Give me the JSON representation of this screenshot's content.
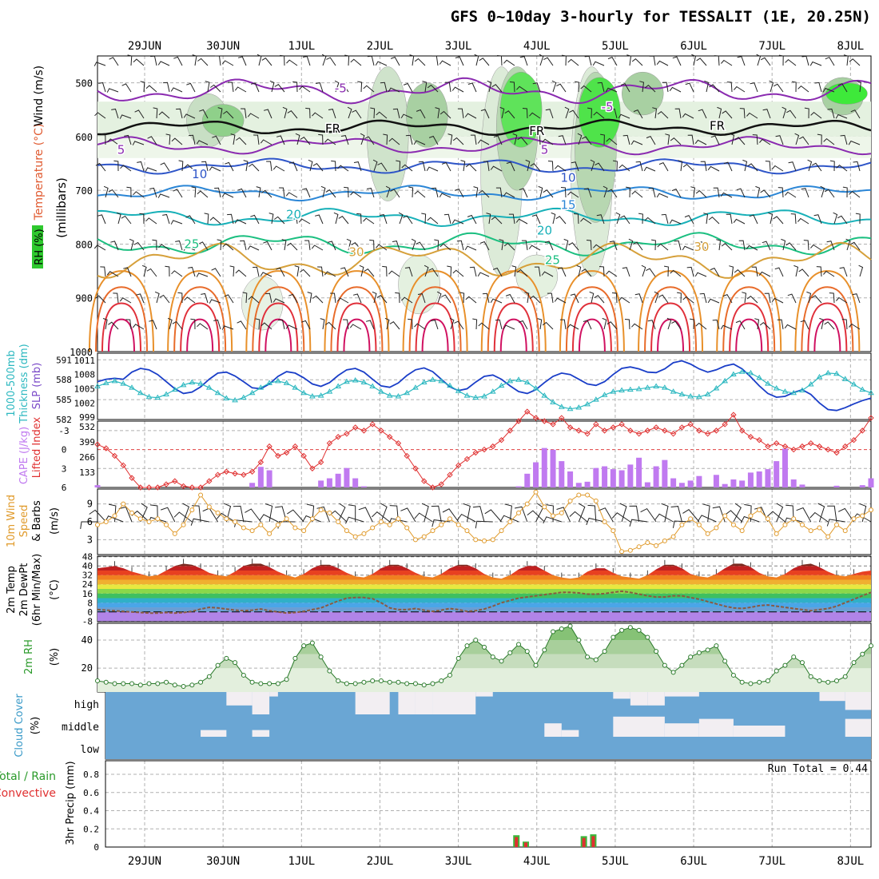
{
  "title": "GFS 0~10day 3-hourly for TESSALIT (1E, 20.25N)",
  "chart_data": {
    "type": "meteogram",
    "dates": [
      "29JUN",
      "30JUN",
      "1JUL",
      "2JUL",
      "3JUL",
      "4JUL",
      "5JUL",
      "6JUL",
      "7JUL",
      "8JUL"
    ],
    "panels": [
      {
        "id": "upper",
        "labels": [
          "RH (%)",
          "Temperature (°C)",
          "Wind (m/s)",
          "(millibars)"
        ],
        "yticks": [
          "500",
          "600",
          "700",
          "800",
          "900",
          "1000"
        ],
        "ylim": [
          450,
          1000
        ],
        "contour_labels": [
          {
            "text": "FR",
            "x_day": 3.4,
            "p": 585
          },
          {
            "text": "FR",
            "x_day": 6.0,
            "p": 590
          },
          {
            "text": "FR",
            "x_day": 8.3,
            "p": 580
          },
          {
            "text": "-5",
            "x_day": 3.5,
            "p": 510
          },
          {
            "text": "-5",
            "x_day": 6.9,
            "p": 545
          },
          {
            "text": "5",
            "x_day": 0.7,
            "p": 625
          },
          {
            "text": "5",
            "x_day": 6.1,
            "p": 625
          },
          {
            "text": "10",
            "x_day": 1.7,
            "p": 670
          },
          {
            "text": "10",
            "x_day": 6.4,
            "p": 677
          },
          {
            "text": "15",
            "x_day": 6.4,
            "p": 727
          },
          {
            "text": "20",
            "x_day": 2.9,
            "p": 745
          },
          {
            "text": "20",
            "x_day": 6.1,
            "p": 775
          },
          {
            "text": "25",
            "x_day": 1.6,
            "p": 800
          },
          {
            "text": "25",
            "x_day": 6.2,
            "p": 830
          },
          {
            "text": "30",
            "x_day": 3.7,
            "p": 815
          },
          {
            "text": "30",
            "x_day": 8.1,
            "p": 805
          }
        ]
      },
      {
        "id": "slp",
        "labels": [
          "1000-500mb",
          "Thickness (dm)",
          "SLP (mb)"
        ],
        "left_ticks": [
          "591",
          "588",
          "585",
          "582"
        ],
        "right_ticks": [
          "1011",
          "1008",
          "1005",
          "1002",
          "999"
        ],
        "thickness_dm": [
          587.0,
          587.5,
          587.8,
          587.4,
          586.8,
          586.0,
          585.4,
          585.3,
          585.8,
          586.5,
          587.2,
          587.6,
          587.4,
          586.8,
          586.0,
          585.2,
          584.9,
          585.3,
          586.0,
          586.8,
          587.5,
          587.8,
          587.5,
          586.8,
          586.0,
          585.5,
          585.6,
          586.2,
          587.0,
          587.7,
          587.9,
          587.6,
          587.0,
          586.2,
          585.6,
          585.5,
          586.0,
          586.8,
          587.6,
          588.0,
          587.8,
          587.1,
          586.3,
          585.6,
          585.3,
          585.5,
          586.2,
          587.1,
          587.8,
          588.0,
          587.6,
          586.7,
          585.6,
          584.6,
          583.9,
          583.6,
          583.8,
          584.3,
          585.0,
          585.7,
          586.2,
          586.4,
          586.5,
          586.6,
          586.8,
          587.0,
          586.8,
          586.2,
          585.8,
          585.5,
          585.4,
          585.8,
          586.7,
          587.8,
          588.8,
          589.2,
          589.0,
          588.3,
          587.4,
          586.7,
          586.2,
          586.0,
          586.4,
          587.3,
          588.4,
          589.0,
          588.9,
          588.1,
          587.3,
          586.5,
          586.0
        ],
        "slp_mb": [
          1006.5,
          1007.0,
          1007.2,
          1007.0,
          1008.5,
          1009.3,
          1009.0,
          1008.0,
          1006.5,
          1005.0,
          1004.0,
          1004.3,
          1005.4,
          1007.0,
          1008.3,
          1008.5,
          1007.7,
          1006.5,
          1005.2,
          1005.0,
          1006.0,
          1007.6,
          1008.6,
          1008.3,
          1007.3,
          1006.0,
          1005.5,
          1006.3,
          1007.8,
          1009.0,
          1009.3,
          1008.5,
          1007.0,
          1005.6,
          1005.3,
          1006.2,
          1007.8,
          1009.0,
          1009.4,
          1008.6,
          1007.0,
          1005.4,
          1004.6,
          1005.0,
          1006.4,
          1007.6,
          1007.9,
          1007.0,
          1005.6,
          1004.4,
          1004.0,
          1004.8,
          1006.3,
          1007.6,
          1008.3,
          1008.0,
          1007.0,
          1006.0,
          1005.7,
          1006.5,
          1008.0,
          1009.3,
          1009.6,
          1009.2,
          1008.5,
          1008.4,
          1009.2,
          1010.5,
          1010.9,
          1010.2,
          1009.2,
          1008.5,
          1009.0,
          1009.8,
          1010.2,
          1009.2,
          1007.5,
          1005.6,
          1004.0,
          1003.2,
          1003.4,
          1004.2,
          1004.8,
          1003.8,
          1002.0,
          1000.6,
          1000.4,
          1001.0,
          1001.8,
          1002.5,
          1003.0
        ]
      },
      {
        "id": "li_cape",
        "labels": [
          "Lifted Index",
          "CAPE (J/kg)"
        ],
        "left_ticks": [
          "-3",
          "0",
          "3",
          "6"
        ],
        "right_ticks": [
          "532",
          "399",
          "266",
          "133"
        ],
        "lifted_index": [
          -0.8,
          -0.2,
          1.0,
          2.5,
          4.5,
          6.0,
          6.0,
          6.0,
          5.5,
          5.0,
          5.8,
          6.0,
          6.0,
          5.0,
          4.0,
          3.5,
          3.8,
          4.0,
          3.5,
          2.0,
          -0.5,
          1.0,
          0.5,
          -0.5,
          1.0,
          3.0,
          2.0,
          -1.0,
          -2.0,
          -2.5,
          -3.5,
          -3.0,
          -4.0,
          -3.0,
          -2.0,
          -1.0,
          1.0,
          3.0,
          5.0,
          6.0,
          5.5,
          4.0,
          2.5,
          1.5,
          0.5,
          0.0,
          -0.5,
          -1.5,
          -3.0,
          -4.5,
          -6.0,
          -5.0,
          -4.5,
          -4.0,
          -5.0,
          -3.5,
          -3.0,
          -2.5,
          -4.0,
          -3.0,
          -3.5,
          -4.0,
          -3.0,
          -2.5,
          -3.0,
          -3.5,
          -3.0,
          -2.5,
          -3.5,
          -4.0,
          -3.0,
          -2.5,
          -3.0,
          -4.0,
          -5.5,
          -3.0,
          -2.0,
          -1.5,
          -0.5,
          -1.0,
          -0.5,
          0.0,
          -0.5,
          -1.0,
          -0.5,
          0.0,
          0.5,
          -0.5,
          -1.5,
          -3.0,
          -5.0
        ],
        "cape": [
          20,
          0,
          0,
          0,
          0,
          0,
          0,
          0,
          0,
          0,
          0,
          0,
          0,
          0,
          0,
          0,
          0,
          0,
          40,
          180,
          150,
          0,
          0,
          0,
          0,
          0,
          60,
          80,
          120,
          170,
          80,
          10,
          0,
          0,
          0,
          0,
          0,
          0,
          0,
          0,
          0,
          0,
          0,
          0,
          0,
          0,
          0,
          0,
          0,
          10,
          120,
          220,
          345,
          330,
          230,
          140,
          40,
          50,
          170,
          185,
          160,
          150,
          200,
          260,
          45,
          185,
          240,
          80,
          40,
          60,
          100,
          0,
          110,
          30,
          70,
          60,
          130,
          140,
          160,
          230,
          340,
          70,
          25,
          0,
          0,
          0,
          15,
          0,
          0,
          20,
          80
        ]
      },
      {
        "id": "wind10m",
        "labels": [
          "10m Wind",
          "Speed",
          "& Barbs",
          "(m/s)"
        ],
        "yticks": [
          "9",
          "6",
          "3"
        ],
        "speed": [
          5.5,
          6.0,
          7.0,
          9.0,
          7.5,
          6.5,
          6.0,
          6.5,
          5.5,
          4.0,
          5.5,
          8.0,
          10.5,
          8.5,
          7.5,
          6.5,
          6.0,
          5.0,
          4.5,
          5.5,
          4.0,
          5.5,
          6.5,
          5.0,
          4.5,
          6.5,
          8.0,
          7.5,
          6.0,
          4.5,
          3.5,
          4.0,
          5.0,
          6.0,
          5.5,
          6.5,
          5.0,
          3.0,
          3.5,
          4.5,
          5.5,
          6.5,
          5.5,
          4.5,
          3.0,
          2.8,
          3.0,
          4.5,
          6.0,
          7.5,
          9.0,
          11.0,
          8.5,
          7.0,
          7.5,
          9.5,
          10.5,
          10.5,
          9.5,
          6.0,
          4.5,
          1.0,
          1.2,
          1.8,
          2.5,
          2.0,
          2.8,
          3.5,
          5.5,
          6.5,
          5.5,
          4.0,
          5.0,
          7.0,
          5.5,
          4.5,
          7.0,
          8.0,
          6.5,
          4.0,
          5.5,
          6.5,
          5.5,
          4.5,
          5.0,
          3.5,
          5.5,
          4.5,
          6.5,
          7.0,
          8.0
        ]
      },
      {
        "id": "temp2m",
        "labels": [
          "2m Temp",
          "2m DewPt",
          "(6hr Min/Max)",
          "(°C)"
        ],
        "yticks": [
          "48",
          "40",
          "32",
          "24",
          "16",
          "8",
          "0",
          "-8"
        ],
        "temperature": [
          38,
          39,
          40,
          38,
          35,
          33,
          31,
          32,
          36,
          40,
          42,
          41,
          38,
          34,
          32,
          31,
          35,
          40,
          42,
          42,
          39,
          35,
          32,
          30,
          33,
          38,
          41,
          41,
          38,
          34,
          31,
          30,
          33,
          38,
          41,
          41,
          38,
          34,
          31,
          30,
          33,
          38,
          41,
          41,
          38,
          33,
          30,
          29,
          32,
          37,
          40,
          40,
          36,
          32,
          30,
          29,
          30,
          35,
          38,
          38,
          34,
          31,
          30,
          29,
          32,
          37,
          41,
          41,
          38,
          33,
          31,
          30,
          33,
          38,
          42,
          42,
          39,
          34,
          31,
          30,
          33,
          38,
          41,
          42,
          39,
          35,
          32,
          31,
          33,
          35,
          36
        ],
        "dewpoint": [
          2.0,
          1.5,
          1.0,
          0.5,
          0.0,
          -0.5,
          -1.0,
          -1.0,
          -0.5,
          -1.0,
          -0.5,
          0.5,
          2.5,
          4.0,
          3.5,
          2.5,
          1.5,
          1.0,
          1.5,
          2.5,
          1.0,
          0.0,
          -1.0,
          -0.5,
          0.5,
          2.0,
          3.5,
          6.5,
          9.5,
          12.0,
          12.5,
          12.5,
          11.5,
          8.0,
          3.5,
          2.0,
          2.0,
          3.0,
          1.5,
          0.5,
          1.5,
          3.0,
          2.0,
          0.5,
          1.0,
          2.5,
          5.0,
          8.0,
          10.0,
          12.0,
          13.0,
          14.0,
          15.0,
          16.0,
          17.0,
          17.0,
          16.5,
          15.5,
          15.5,
          16.0,
          17.0,
          18.0,
          17.0,
          15.5,
          14.0,
          13.0,
          13.0,
          14.0,
          14.0,
          12.5,
          11.0,
          9.0,
          7.0,
          5.0,
          3.5,
          3.0,
          4.0,
          5.5,
          6.0,
          5.0,
          4.0,
          3.0,
          2.0,
          1.0,
          2.0,
          3.0,
          5.0,
          8.0,
          11.0,
          14.0,
          17.0
        ]
      },
      {
        "id": "rh2m",
        "labels": [
          "2m RH",
          "(%)"
        ],
        "yticks": [
          "40",
          "20"
        ],
        "rh": [
          11,
          10,
          9,
          9,
          9,
          8,
          9,
          9,
          10,
          8,
          7,
          8,
          10,
          14,
          22,
          27,
          24,
          15,
          10,
          9,
          9,
          9,
          12,
          27,
          36,
          38,
          28,
          18,
          11,
          9,
          9,
          10,
          11,
          11,
          10,
          10,
          9,
          9,
          8,
          9,
          11,
          15,
          27,
          36,
          40,
          35,
          28,
          25,
          31,
          37,
          32,
          22,
          33,
          46,
          48,
          50,
          40,
          28,
          26,
          32,
          42,
          47,
          49,
          47,
          42,
          32,
          22,
          17,
          22,
          28,
          31,
          33,
          36,
          25,
          15,
          10,
          9,
          10,
          11,
          18,
          22,
          28,
          24,
          14,
          11,
          10,
          11,
          14,
          24,
          30,
          36
        ]
      },
      {
        "id": "cloud",
        "labels": [
          "Cloud Cover",
          "(%)"
        ],
        "levels": [
          "high",
          "middle",
          "low"
        ]
      },
      {
        "id": "precip",
        "labels": [
          "Total / Rain",
          "Convective",
          "3hr Precip (mm)"
        ],
        "yticks": [
          "0.8",
          "0.6",
          "0.4",
          "0.2",
          "0"
        ],
        "run_total_label": "Run Total = 0.44",
        "events": [
          {
            "day": 5.74,
            "total": 0.13,
            "convective": 0.11
          },
          {
            "day": 5.86,
            "total": 0.06,
            "convective": 0.05
          },
          {
            "day": 6.6,
            "total": 0.12,
            "convective": 0.1
          },
          {
            "day": 6.72,
            "total": 0.14,
            "convective": 0.12
          }
        ]
      }
    ]
  }
}
